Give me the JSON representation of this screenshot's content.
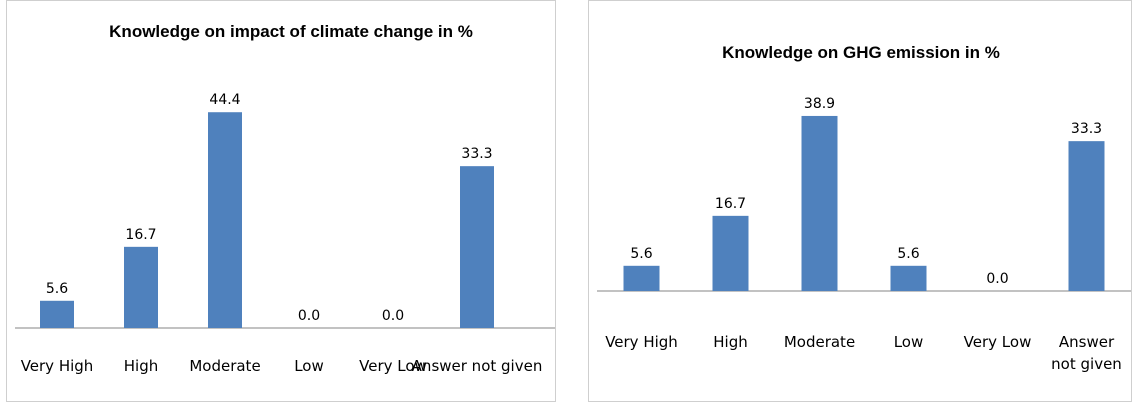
{
  "chart_data": [
    {
      "type": "bar",
      "title": "Knowledge on impact of climate change in %",
      "categories": [
        "Very High",
        "High",
        "Moderate",
        "Low",
        "Very Low",
        "Answer not given"
      ],
      "values": [
        5.6,
        16.7,
        44.4,
        0.0,
        0.0,
        33.3
      ],
      "value_labels": [
        "5.6",
        "16.7",
        "44.4",
        "0.0",
        "0.0",
        "33.3"
      ],
      "xlabel": "",
      "ylabel": "",
      "ylim": [
        0,
        50
      ],
      "grid": false,
      "legend": "none",
      "bar_color": "#4f81bd"
    },
    {
      "type": "bar",
      "title": "Knowledge on GHG emission in %",
      "categories": [
        "Very High",
        "High",
        "Moderate",
        "Low",
        "Very Low",
        "Answer not given"
      ],
      "values": [
        5.6,
        16.7,
        38.9,
        5.6,
        0.0,
        33.3
      ],
      "value_labels": [
        "5.6",
        "16.7",
        "38.9",
        "5.6",
        "0.0",
        "33.3"
      ],
      "xlabel": "",
      "ylabel": "",
      "ylim": [
        0,
        45
      ],
      "grid": false,
      "legend": "none",
      "bar_color": "#4f81bd"
    }
  ]
}
